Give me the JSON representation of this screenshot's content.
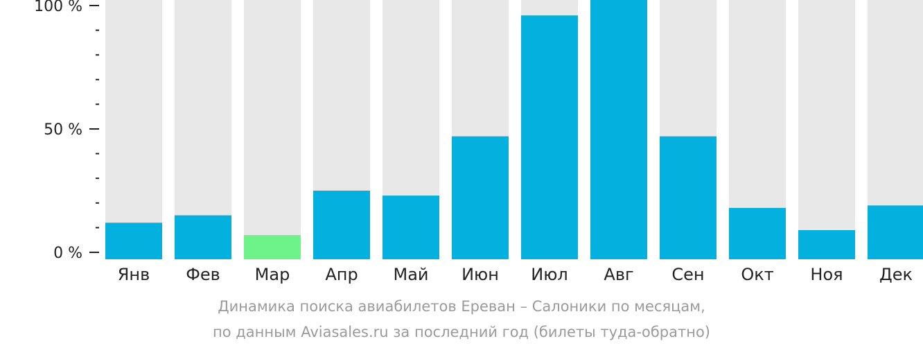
{
  "chart_data": {
    "type": "bar",
    "title": "Динамика поиска авиабилетов Ереван – Салоники по месяцам,",
    "subtitle": "по данным Aviasales.ru за последний год (билеты туда-обратно)",
    "categories": [
      "Янв",
      "Фев",
      "Мар",
      "Апр",
      "Май",
      "Июн",
      "Июл",
      "Авг",
      "Сен",
      "Окт",
      "Ноя",
      "Дек"
    ],
    "values": [
      12,
      15,
      7,
      25,
      23,
      47,
      96,
      100,
      47,
      18,
      9,
      19
    ],
    "highlight_index": 2,
    "ylim": [
      0,
      100
    ],
    "yticks": [
      0,
      50,
      100
    ],
    "ytick_labels": [
      "0 %",
      "50 %",
      "100 %"
    ],
    "minor_ticks_per_interval": 5,
    "colors": {
      "bar": "#03b0de",
      "highlight": "#6ef28a",
      "track": "#e8e8e8",
      "text": "#222222",
      "caption": "#9a9a9a"
    }
  }
}
